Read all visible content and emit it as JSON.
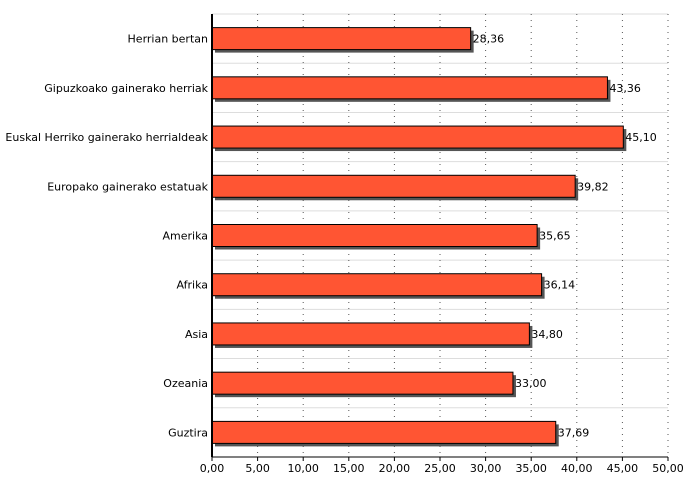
{
  "chart_data": {
    "type": "bar",
    "orientation": "horizontal",
    "categories": [
      "Herrian bertan",
      "Gipuzkoako gainerako herriak",
      "Euskal Herriko gainerako herrialdeak",
      "Europako gainerako estatuak",
      "Amerika",
      "Afrika",
      "Asia",
      "Ozeania",
      "Guztira"
    ],
    "values": [
      28.36,
      43.36,
      45.1,
      39.82,
      35.65,
      36.14,
      34.8,
      33.0,
      37.69
    ],
    "value_labels": [
      "28,36",
      "43,36",
      "45,10",
      "39,82",
      "35,65",
      "36,14",
      "34,80",
      "33,00",
      "37,69"
    ],
    "x_ticks": [
      "0,00",
      "5,00",
      "10,00",
      "15,00",
      "20,00",
      "25,00",
      "30,00",
      "35,00",
      "40,00",
      "45,00",
      "50,00"
    ],
    "xlim": [
      0,
      50
    ],
    "title": "",
    "xlabel": "",
    "ylabel": "",
    "grid": "vertical dotted",
    "bar_color": "#ff5533",
    "bar_border_color": "#000000",
    "shadow_color": "#555555"
  }
}
